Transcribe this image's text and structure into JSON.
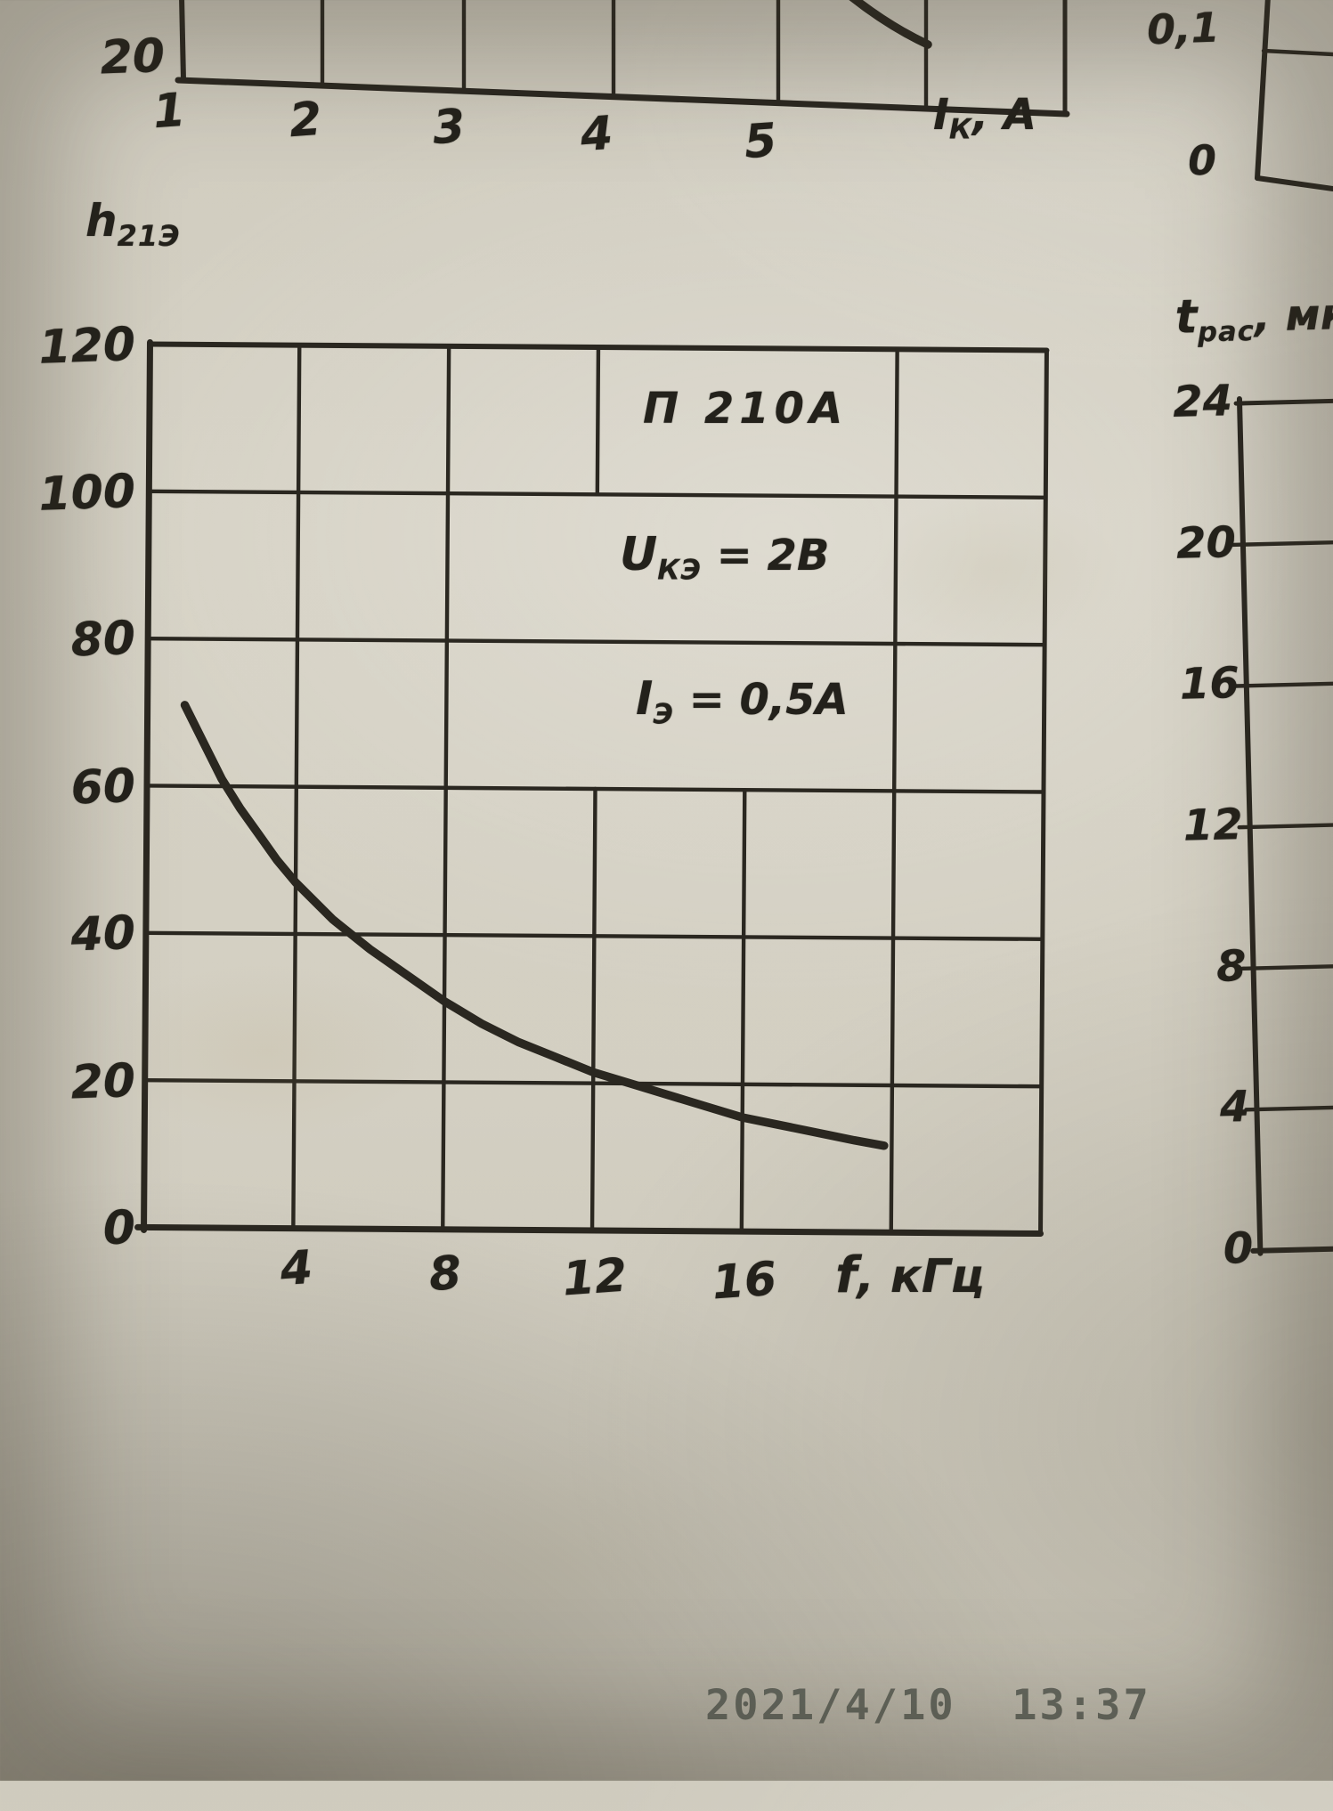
{
  "photo": {
    "timestamp": "2021/4/10  13:37"
  },
  "top_chart": {
    "y_tick": "20",
    "x_ticks": [
      "1",
      "2",
      "3",
      "4",
      "5"
    ],
    "x_axis_label": {
      "symbol": "I",
      "sub": "К",
      "unit": ", А"
    }
  },
  "mini_chart": {
    "tick_top": "0,1",
    "tick_bottom": "0"
  },
  "main_chart": {
    "y_axis_label": {
      "symbol": "h",
      "sub": "21Э"
    },
    "y_ticks": [
      "120",
      "100",
      "80",
      "60",
      "40",
      "20",
      "0"
    ],
    "x_ticks": [
      "4",
      "8",
      "12",
      "16"
    ],
    "x_axis_label": {
      "symbol": "f",
      "unit": ", кГц"
    },
    "annotations": {
      "device": "П 210А",
      "cond1": {
        "symbol": "U",
        "sub": "КЭ",
        "value": " = 2В"
      },
      "cond2": {
        "symbol": "I",
        "sub": "Э",
        "value": " = 0,5А"
      }
    }
  },
  "right_chart": {
    "y_axis_label": {
      "symbol": "t",
      "sub": "рас",
      "unit": ", мк"
    },
    "y_ticks": [
      "24",
      "20",
      "16",
      "12",
      "8",
      "4",
      "0"
    ]
  },
  "chart_data": [
    {
      "id": "top-chart-partial",
      "type": "line",
      "xlabel": "Iк, А",
      "x_ticks": [
        1,
        2,
        3,
        4,
        5
      ],
      "visible_y_tick": 20,
      "note": "Only bottom edge visible: x-axis, tick labels 1-5, y tick 20 and a short curve fragment cropped by photo top edge."
    },
    {
      "id": "main-h21e-vs-f",
      "type": "line",
      "title": "П 210А",
      "conditions": [
        "Uкэ = 2В",
        "Iэ = 0,5А"
      ],
      "xlabel": "f, кГц",
      "ylabel": "h21Э",
      "xlim": [
        0,
        24
      ],
      "ylim": [
        0,
        120
      ],
      "x_gridlines": [
        4,
        8,
        12,
        16,
        20
      ],
      "y_gridlines": [
        20,
        40,
        60,
        80,
        100,
        120
      ],
      "grid": true,
      "legend": false,
      "points": [
        [
          1,
          71
        ],
        [
          1.5,
          66
        ],
        [
          2,
          61
        ],
        [
          2.5,
          57
        ],
        [
          3,
          53.5
        ],
        [
          3.5,
          50
        ],
        [
          4,
          47
        ],
        [
          5,
          42
        ],
        [
          6,
          38
        ],
        [
          7,
          34.5
        ],
        [
          8,
          31
        ],
        [
          9,
          28
        ],
        [
          10,
          25.5
        ],
        [
          11,
          23.5
        ],
        [
          12,
          21.5
        ],
        [
          13,
          20
        ],
        [
          14,
          18.5
        ],
        [
          15,
          17
        ],
        [
          16,
          15.5
        ],
        [
          17,
          14.5
        ],
        [
          18,
          13.5
        ],
        [
          19,
          12.5
        ],
        [
          19.8,
          11.8
        ]
      ]
    },
    {
      "id": "right-chart-partial",
      "type": "line",
      "ylabel": "tрас, мкс",
      "y_ticks": [
        24,
        20,
        16,
        12,
        8,
        4,
        0
      ],
      "note": "Only left axis and tick labels visible; plot area cropped by photo right edge."
    },
    {
      "id": "top-right-partial",
      "type": "line",
      "y_ticks": [
        0.1,
        0
      ],
      "note": "Bottom-left corner of another chart cropped by photo right edge."
    }
  ]
}
